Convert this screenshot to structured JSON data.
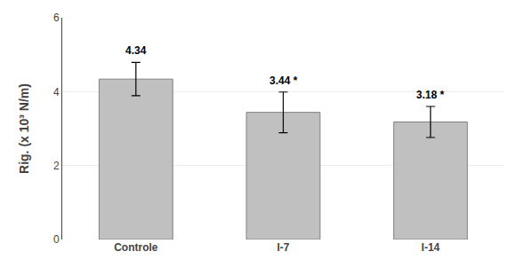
{
  "chart_data": {
    "type": "bar",
    "categories": [
      "Controle",
      "I-7",
      "I-14"
    ],
    "values": [
      4.34,
      3.44,
      3.18
    ],
    "errors": [
      0.45,
      0.55,
      0.42
    ],
    "data_labels": true,
    "value_labels": [
      "4.34",
      "3.44 *",
      "3.18 *"
    ],
    "ylabel": "Rig. (x 10³ N/m)",
    "ylim": [
      0,
      6
    ],
    "yticks": [
      0,
      2,
      4,
      6
    ],
    "color": "#c0c0c0",
    "grid": true
  }
}
